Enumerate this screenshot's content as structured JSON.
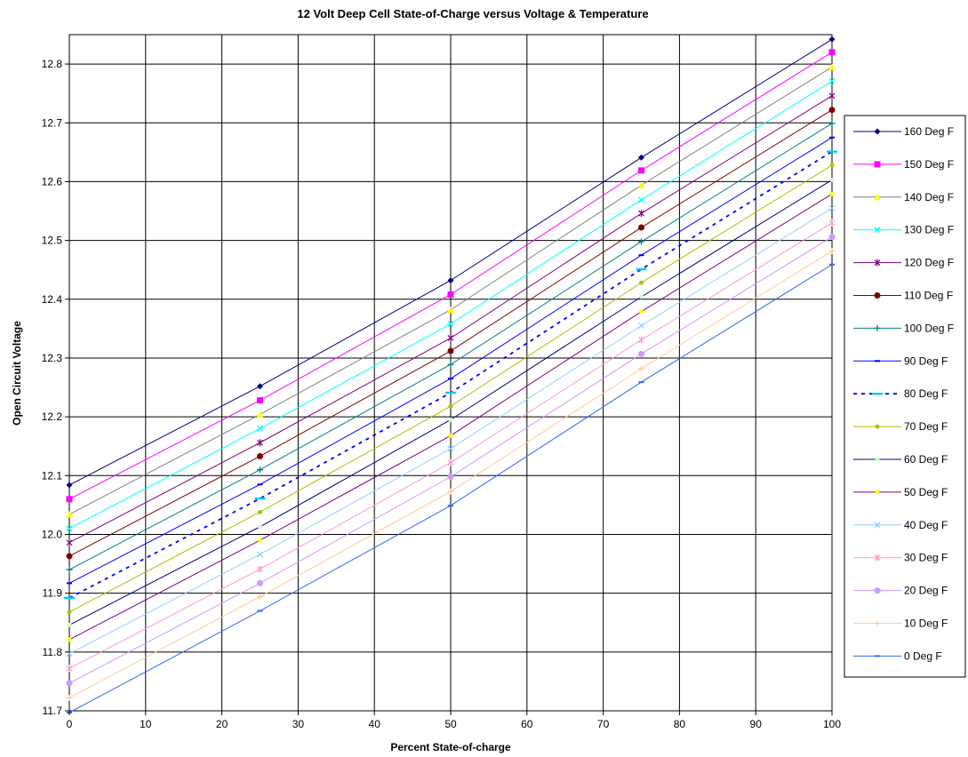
{
  "chart_data": {
    "type": "line",
    "title": "12 Volt Deep Cell State-of-Charge versus Voltage & Temperature",
    "xlabel": "Percent State-of-charge",
    "ylabel": "Open Circuit Voltage",
    "xlim": [
      0,
      100
    ],
    "ylim": [
      11.7,
      12.85
    ],
    "x_ticks": [
      0,
      10,
      20,
      30,
      40,
      50,
      60,
      70,
      80,
      90,
      100
    ],
    "y_ticks": [
      11.7,
      11.8,
      11.9,
      12.0,
      12.1,
      12.2,
      12.3,
      12.4,
      12.5,
      12.6,
      12.7,
      12.8
    ],
    "x_tick_labels": [
      "0",
      "10",
      "20",
      "30",
      "40",
      "50",
      "60",
      "70",
      "80",
      "90",
      "100"
    ],
    "y_tick_labels": [
      "11.7",
      "11.8",
      "11.9",
      "12.0",
      "12.1",
      "12.2",
      "12.3",
      "12.4",
      "12.5",
      "12.6",
      "12.7",
      "12.8"
    ],
    "grid": true,
    "legend_position": "right",
    "x": [
      0,
      25,
      50,
      75,
      100
    ],
    "series": [
      {
        "name": "160 Deg F",
        "color": "#000080",
        "marker": "diamond",
        "dashed": false,
        "values": [
          12.084,
          12.252,
          12.432,
          12.641,
          12.842
        ]
      },
      {
        "name": "150 Deg F",
        "color": "#FF00FF",
        "marker": "square",
        "dashed": false,
        "values": [
          12.06,
          12.228,
          12.408,
          12.619,
          12.82
        ]
      },
      {
        "name": "140 Deg F",
        "color": "#FFFF00",
        "marker": "triangle",
        "dashed": false,
        "line_color": "#808080",
        "values": [
          12.034,
          12.204,
          12.382,
          12.594,
          12.795
        ]
      },
      {
        "name": "130 Deg F",
        "color": "#00FFFF",
        "marker": "x",
        "dashed": false,
        "values": [
          12.01,
          12.18,
          12.358,
          12.569,
          12.771
        ]
      },
      {
        "name": "120 Deg F",
        "color": "#800080",
        "marker": "star",
        "dashed": false,
        "values": [
          11.986,
          12.156,
          12.334,
          12.546,
          12.746
        ]
      },
      {
        "name": "110 Deg F",
        "color": "#800000",
        "marker": "circle",
        "dashed": false,
        "values": [
          11.963,
          12.133,
          12.312,
          12.522,
          12.722
        ]
      },
      {
        "name": "100 Deg F",
        "color": "#008080",
        "marker": "plus",
        "dashed": false,
        "values": [
          11.94,
          12.11,
          12.289,
          12.498,
          12.699
        ]
      },
      {
        "name": "90 Deg F",
        "color": "#0000FF",
        "marker": "dash",
        "dashed": false,
        "values": [
          11.917,
          12.085,
          12.265,
          12.475,
          12.675
        ]
      },
      {
        "name": "80 Deg F",
        "color": "#0000FF",
        "marker": "bar",
        "dashed": true,
        "marker_color": "#00CCFF",
        "values": [
          11.892,
          12.061,
          12.241,
          12.451,
          12.651
        ]
      },
      {
        "name": "70 Deg F",
        "color": "#99CC00",
        "marker": "dot",
        "dashed": false,
        "values": [
          11.868,
          12.038,
          12.218,
          12.428,
          12.628
        ]
      },
      {
        "name": "60 Deg F",
        "color": "#000080",
        "marker": "dot",
        "dashed": false,
        "marker_color": "#CCFFCC",
        "values": [
          11.846,
          12.013,
          12.195,
          12.404,
          12.603
        ]
      },
      {
        "name": "50 Deg F",
        "color": "#800080",
        "marker": "dot",
        "dashed": false,
        "marker_color": "#FFFF00",
        "values": [
          11.821,
          11.99,
          12.168,
          12.379,
          12.579
        ]
      },
      {
        "name": "40 Deg F",
        "color": "#99CCFF",
        "marker": "x",
        "dashed": false,
        "values": [
          11.797,
          11.966,
          12.146,
          12.355,
          12.555
        ]
      },
      {
        "name": "30 Deg F",
        "color": "#FF99CC",
        "marker": "star",
        "dashed": false,
        "values": [
          11.772,
          11.941,
          12.122,
          12.331,
          12.53
        ]
      },
      {
        "name": "20 Deg F",
        "color": "#CC99FF",
        "marker": "circle",
        "dashed": false,
        "values": [
          11.747,
          11.917,
          12.098,
          12.307,
          12.506
        ]
      },
      {
        "name": "10 Deg F",
        "color": "#FFCC99",
        "marker": "plus",
        "dashed": false,
        "values": [
          11.722,
          11.894,
          12.073,
          12.282,
          12.482
        ]
      },
      {
        "name": "0 Deg F",
        "color": "#3366FF",
        "marker": "dash",
        "dashed": false,
        "values": [
          11.697,
          11.87,
          12.049,
          12.259,
          12.459
        ]
      }
    ]
  }
}
